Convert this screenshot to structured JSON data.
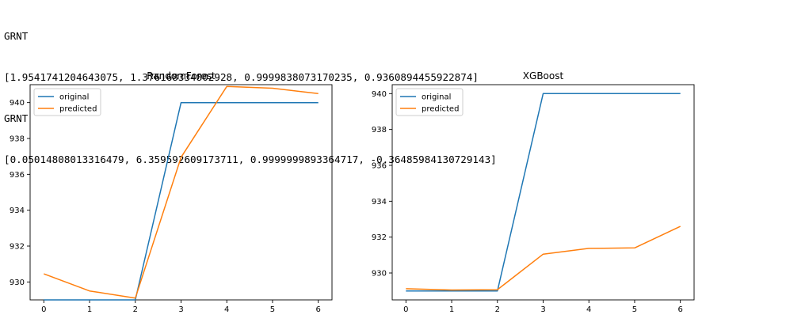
{
  "output_lines": [
    "GRNT",
    "[1.9541741204643075, 1.376168334802928, 0.9999838073170235, 0.9360894455922874]",
    "GRNT",
    "[0.05014808013316479, 6.359592609173711, 0.9999999893364717, -0.36485984130729143]"
  ],
  "colors": {
    "original": "#1f77b4",
    "predicted": "#ff7f0e"
  },
  "chart_data": [
    {
      "type": "line",
      "title": "RandomForest",
      "xlabel": "",
      "ylabel": "",
      "x": [
        0,
        1,
        2,
        3,
        4,
        5,
        6
      ],
      "xlim": [
        -0.3,
        6.3
      ],
      "ylim": [
        929.0,
        941.0
      ],
      "yticks": [
        930,
        932,
        934,
        936,
        938,
        940
      ],
      "xticks": [
        0,
        1,
        2,
        3,
        4,
        5,
        6
      ],
      "grid": false,
      "legend": "upper-left",
      "series": [
        {
          "name": "original",
          "values": [
            929.0,
            929.0,
            929.0,
            940.0,
            940.0,
            940.0,
            940.0
          ]
        },
        {
          "name": "predicted",
          "values": [
            930.45,
            929.5,
            929.1,
            936.95,
            940.9,
            940.8,
            940.5
          ]
        }
      ]
    },
    {
      "type": "line",
      "title": "XGBoost",
      "xlabel": "",
      "ylabel": "",
      "x": [
        0,
        1,
        2,
        3,
        4,
        5,
        6
      ],
      "xlim": [
        -0.3,
        6.3
      ],
      "ylim": [
        928.5,
        940.5
      ],
      "yticks": [
        930,
        932,
        934,
        936,
        938,
        940
      ],
      "xticks": [
        0,
        1,
        2,
        3,
        4,
        5,
        6
      ],
      "grid": false,
      "legend": "upper-left",
      "series": [
        {
          "name": "original",
          "values": [
            929.0,
            929.0,
            929.0,
            940.0,
            940.0,
            940.0,
            940.0
          ]
        },
        {
          "name": "predicted",
          "values": [
            929.12,
            929.05,
            929.07,
            931.05,
            931.37,
            931.4,
            932.6
          ]
        }
      ]
    }
  ]
}
